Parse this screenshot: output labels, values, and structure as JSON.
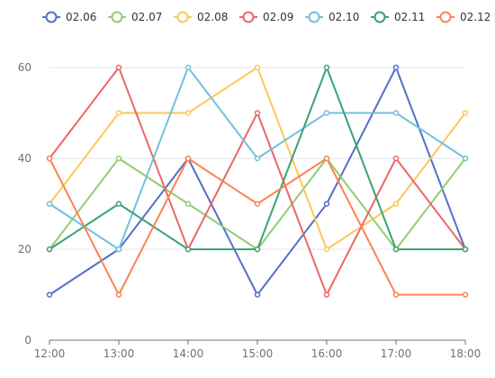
{
  "chart_data": {
    "type": "line",
    "categories": [
      "12:00",
      "13:00",
      "14:00",
      "15:00",
      "16:00",
      "17:00",
      "18:00"
    ],
    "ylim": [
      0,
      60
    ],
    "yticks": [
      0,
      20,
      40,
      60
    ],
    "grid": true,
    "legend_position": "top",
    "series": [
      {
        "name": "02.06",
        "color": "#5470c6",
        "values": [
          10,
          20,
          40,
          10,
          30,
          60,
          20
        ]
      },
      {
        "name": "02.07",
        "color": "#91cc75",
        "values": [
          20,
          40,
          30,
          20,
          40,
          20,
          40
        ]
      },
      {
        "name": "02.08",
        "color": "#fac858",
        "values": [
          30,
          50,
          50,
          60,
          20,
          30,
          50
        ]
      },
      {
        "name": "02.09",
        "color": "#ee6666",
        "values": [
          40,
          60,
          20,
          50,
          10,
          40,
          20
        ]
      },
      {
        "name": "02.10",
        "color": "#73c0de",
        "values": [
          30,
          20,
          60,
          40,
          50,
          50,
          40
        ]
      },
      {
        "name": "02.11",
        "color": "#3ba272",
        "values": [
          20,
          30,
          20,
          20,
          60,
          20,
          20
        ]
      },
      {
        "name": "02.12",
        "color": "#fc8452",
        "values": [
          40,
          10,
          40,
          30,
          40,
          10,
          10
        ]
      }
    ]
  }
}
